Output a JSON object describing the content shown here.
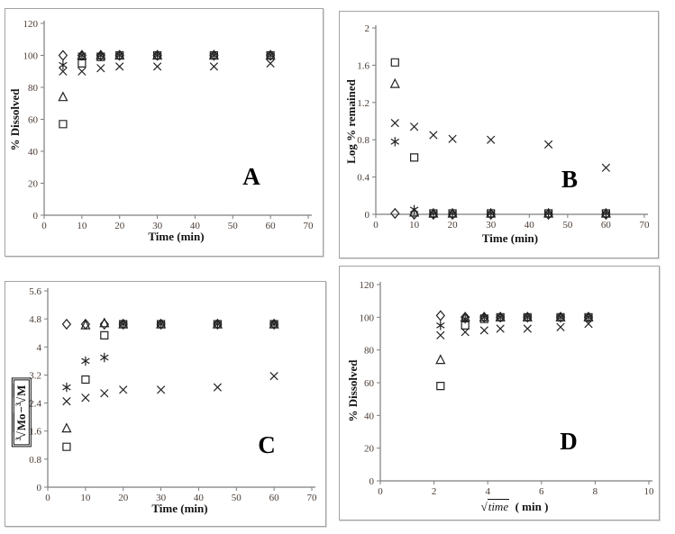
{
  "figure": {
    "background": "#ffffff",
    "marker_color": "#232323",
    "axis_color": "#7d7d7d",
    "tick_label_color": "#4a3c34",
    "text_color": "#141414",
    "panel_border_color": "#a3a3a3"
  },
  "chart_data": [
    {
      "panel": "A",
      "letter": "A",
      "type": "scatter",
      "title": "",
      "xlabel": "Time (min)",
      "ylabel": "% Dissolved",
      "xlim": [
        0,
        70
      ],
      "ylim": [
        0,
        120
      ],
      "x_ticks": [
        "0",
        "10",
        "20",
        "30",
        "40",
        "50",
        "60",
        "70"
      ],
      "y_ticks": [
        "0",
        "20",
        "40",
        "60",
        "80",
        "100",
        "120"
      ],
      "grid": false,
      "legend": false,
      "x": [
        5,
        10,
        15,
        20,
        30,
        45,
        60
      ],
      "series": [
        {
          "name": "diamond",
          "marker": "diamond",
          "values": [
            100,
            100,
            100,
            100,
            100,
            100,
            100
          ]
        },
        {
          "name": "square",
          "marker": "square",
          "values": [
            57,
            95,
            99,
            100,
            100,
            100,
            100
          ]
        },
        {
          "name": "triangle",
          "marker": "triangle",
          "values": [
            74,
            100,
            100,
            100,
            100,
            100,
            100
          ]
        },
        {
          "name": "asterisk",
          "marker": "asterisk",
          "values": [
            94,
            100,
            100,
            100,
            100,
            100,
            100
          ]
        },
        {
          "name": "x-cross",
          "marker": "x",
          "values": [
            90,
            90,
            92,
            93,
            93,
            93,
            95
          ]
        }
      ]
    },
    {
      "panel": "B",
      "letter": "B",
      "type": "scatter",
      "title": "",
      "xlabel": "Time (min)",
      "ylabel": "Log % remained",
      "xlim": [
        0,
        70
      ],
      "ylim": [
        0,
        2
      ],
      "x_ticks": [
        "0",
        "10",
        "20",
        "30",
        "40",
        "50",
        "60",
        "70"
      ],
      "y_ticks": [
        "0",
        "0.4",
        "0.8",
        "1.2",
        "1.6",
        "2"
      ],
      "grid": false,
      "legend": false,
      "x": [
        5,
        10,
        15,
        20,
        30,
        45,
        60
      ],
      "series": [
        {
          "name": "diamond",
          "marker": "diamond",
          "values": [
            0.01,
            0,
            0,
            0,
            0,
            0,
            0
          ]
        },
        {
          "name": "square",
          "marker": "square",
          "values": [
            1.63,
            0.61,
            0.01,
            0.01,
            0.01,
            0.01,
            0.01
          ]
        },
        {
          "name": "triangle",
          "marker": "triangle",
          "values": [
            1.4,
            0.02,
            0.01,
            0.01,
            0.01,
            0.01,
            0.01
          ]
        },
        {
          "name": "asterisk",
          "marker": "asterisk",
          "values": [
            0.78,
            0.05,
            0.01,
            0.01,
            0.01,
            0.01,
            0.01
          ]
        },
        {
          "name": "x-cross",
          "marker": "x",
          "values": [
            0.98,
            0.94,
            0.85,
            0.81,
            0.8,
            0.75,
            0.5
          ]
        }
      ]
    },
    {
      "panel": "C",
      "letter": "C",
      "type": "scatter",
      "title": "",
      "xlabel": "Time (min)",
      "ylabel": "∛Mo−∛M",
      "ylabel_boxed": true,
      "ylabel_parts": [
        {
          "root": "3",
          "radicand": "Mo"
        },
        {
          "operator": "−"
        },
        {
          "root": "3",
          "radicand": "M"
        }
      ],
      "xlim": [
        0,
        70
      ],
      "ylim": [
        0,
        5.6
      ],
      "x_ticks": [
        "0",
        "10",
        "20",
        "30",
        "40",
        "50",
        "60",
        "70"
      ],
      "y_ticks": [
        "0",
        "0.8",
        "1.6",
        "2.4",
        "3.2",
        "4",
        "4.8",
        "5.6"
      ],
      "grid": false,
      "legend": false,
      "x": [
        5,
        10,
        15,
        20,
        30,
        45,
        60
      ],
      "series": [
        {
          "name": "diamond",
          "marker": "diamond",
          "values": [
            4.65,
            4.65,
            4.65,
            4.65,
            4.65,
            4.65,
            4.65
          ]
        },
        {
          "name": "square",
          "marker": "square",
          "values": [
            1.15,
            3.07,
            4.33,
            4.65,
            4.65,
            4.65,
            4.65
          ]
        },
        {
          "name": "triangle",
          "marker": "triangle",
          "values": [
            1.68,
            4.62,
            4.68,
            4.65,
            4.65,
            4.65,
            4.65
          ]
        },
        {
          "name": "asterisk",
          "marker": "asterisk",
          "values": [
            2.85,
            3.6,
            3.7,
            4.65,
            4.65,
            4.65,
            4.65
          ]
        },
        {
          "name": "x-cross",
          "marker": "x",
          "values": [
            2.45,
            2.55,
            2.68,
            2.78,
            2.78,
            2.85,
            3.17
          ]
        }
      ]
    },
    {
      "panel": "D",
      "letter": "D",
      "type": "scatter",
      "title": "",
      "xlabel": "√time ( min )",
      "xlabel_parts": {
        "radicand": "time",
        "post": " ( min )"
      },
      "ylabel": "% Dissolved",
      "xlim": [
        0,
        10
      ],
      "ylim": [
        0,
        120
      ],
      "x_ticks": [
        "0",
        "2",
        "4",
        "6",
        "8",
        "10"
      ],
      "y_ticks": [
        "0",
        "20",
        "40",
        "60",
        "80",
        "100",
        "120"
      ],
      "grid": false,
      "legend": false,
      "x": [
        2.24,
        3.16,
        3.87,
        4.47,
        5.48,
        6.71,
        7.75
      ],
      "series": [
        {
          "name": "diamond",
          "marker": "diamond",
          "values": [
            101,
            100,
            100,
            100,
            100,
            100,
            100
          ]
        },
        {
          "name": "square",
          "marker": "square",
          "values": [
            58,
            95,
            99,
            100,
            100,
            100,
            100
          ]
        },
        {
          "name": "triangle",
          "marker": "triangle",
          "values": [
            74,
            100,
            100,
            100,
            100,
            100,
            100
          ]
        },
        {
          "name": "asterisk",
          "marker": "asterisk",
          "values": [
            95,
            99,
            100,
            100,
            100,
            100,
            100
          ]
        },
        {
          "name": "x-cross",
          "marker": "x",
          "values": [
            89,
            91,
            92,
            93,
            93,
            94,
            96
          ]
        }
      ]
    }
  ]
}
